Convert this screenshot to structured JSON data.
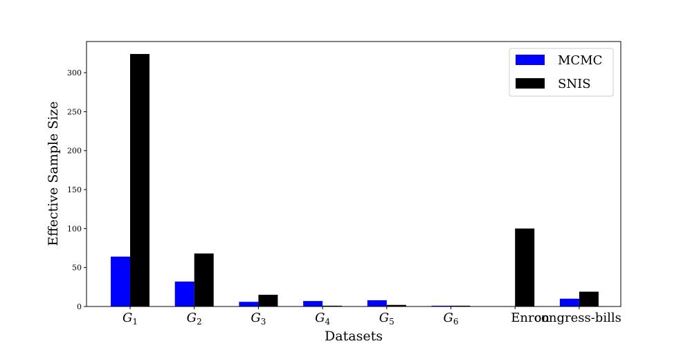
{
  "chart_data": {
    "type": "bar",
    "categories": [
      {
        "base": "G",
        "sub": "1"
      },
      {
        "base": "G",
        "sub": "2"
      },
      {
        "base": "G",
        "sub": "3"
      },
      {
        "base": "G",
        "sub": "4"
      },
      {
        "base": "G",
        "sub": "5"
      },
      {
        "base": "G",
        "sub": "6"
      },
      {
        "base": "Enron",
        "sub": ""
      },
      {
        "base": "congress-bills",
        "sub": ""
      }
    ],
    "series": [
      {
        "name": "MCMC",
        "color": "#0000ff",
        "values": [
          64,
          32,
          6,
          7,
          8,
          1,
          0,
          10
        ]
      },
      {
        "name": "SNIS",
        "color": "#000000",
        "values": [
          324,
          68,
          15,
          1,
          2,
          1,
          100,
          19
        ]
      }
    ],
    "xlabel": "Datasets",
    "ylabel": "Effective Sample Size",
    "yticks": [
      0,
      50,
      100,
      150,
      200,
      250,
      300
    ],
    "ylim": [
      0,
      340
    ],
    "legend": "top-right",
    "grid": false
  }
}
